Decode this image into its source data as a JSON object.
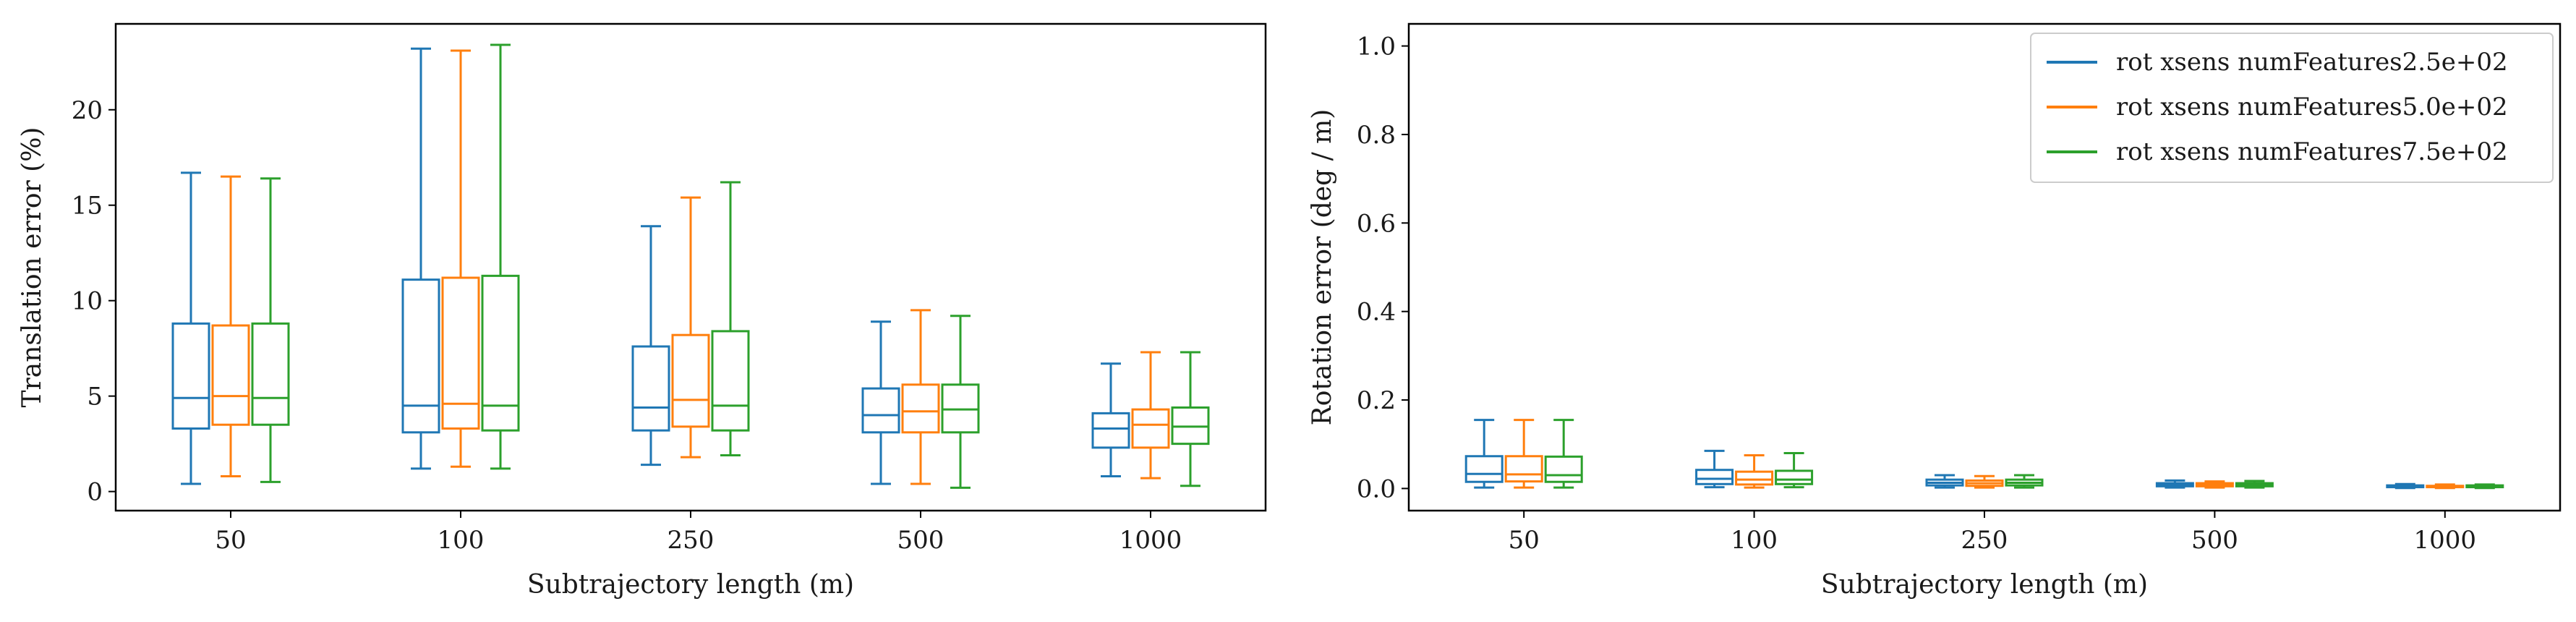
{
  "chart_data": [
    {
      "type": "box",
      "xlabel": "Subtrajectory length (m)",
      "ylabel": "Translation error (%)",
      "categories": [
        "50",
        "100",
        "250",
        "500",
        "1000"
      ],
      "yticks": [
        0,
        5,
        10,
        15,
        20
      ],
      "ylim": [
        -1.0,
        24.5
      ],
      "grid": false,
      "series": [
        {
          "name": "rot xsens numFeatures2.5e+02",
          "color": "#1f77b4",
          "boxes": [
            {
              "whislo": 0.4,
              "q1": 3.3,
              "med": 4.9,
              "q3": 8.8,
              "whishi": 16.7
            },
            {
              "whislo": 1.2,
              "q1": 3.1,
              "med": 4.5,
              "q3": 11.1,
              "whishi": 23.2
            },
            {
              "whislo": 1.4,
              "q1": 3.2,
              "med": 4.4,
              "q3": 7.6,
              "whishi": 13.9
            },
            {
              "whislo": 0.4,
              "q1": 3.1,
              "med": 4.0,
              "q3": 5.4,
              "whishi": 8.9
            },
            {
              "whislo": 0.8,
              "q1": 2.3,
              "med": 3.3,
              "q3": 4.1,
              "whishi": 6.7
            }
          ]
        },
        {
          "name": "rot xsens numFeatures5.0e+02",
          "color": "#ff7f0e",
          "boxes": [
            {
              "whislo": 0.8,
              "q1": 3.5,
              "med": 5.0,
              "q3": 8.7,
              "whishi": 16.5
            },
            {
              "whislo": 1.3,
              "q1": 3.3,
              "med": 4.6,
              "q3": 11.2,
              "whishi": 23.1
            },
            {
              "whislo": 1.8,
              "q1": 3.4,
              "med": 4.8,
              "q3": 8.2,
              "whishi": 15.4
            },
            {
              "whislo": 0.4,
              "q1": 3.1,
              "med": 4.2,
              "q3": 5.6,
              "whishi": 9.5
            },
            {
              "whislo": 0.7,
              "q1": 2.3,
              "med": 3.5,
              "q3": 4.3,
              "whishi": 7.3
            }
          ]
        },
        {
          "name": "rot xsens numFeatures7.5e+02",
          "color": "#2ca02c",
          "boxes": [
            {
              "whislo": 0.5,
              "q1": 3.5,
              "med": 4.9,
              "q3": 8.8,
              "whishi": 16.4
            },
            {
              "whislo": 1.2,
              "q1": 3.2,
              "med": 4.5,
              "q3": 11.3,
              "whishi": 23.4
            },
            {
              "whislo": 1.9,
              "q1": 3.2,
              "med": 4.5,
              "q3": 8.4,
              "whishi": 16.2
            },
            {
              "whislo": 0.2,
              "q1": 3.1,
              "med": 4.3,
              "q3": 5.6,
              "whishi": 9.2
            },
            {
              "whislo": 0.3,
              "q1": 2.5,
              "med": 3.4,
              "q3": 4.4,
              "whishi": 7.3
            }
          ]
        }
      ]
    },
    {
      "type": "box",
      "xlabel": "Subtrajectory length (m)",
      "ylabel": "Rotation error (deg / m)",
      "categories": [
        "50",
        "100",
        "250",
        "500",
        "1000"
      ],
      "yticks": [
        "0.0",
        "0.2",
        "0.4",
        "0.6",
        "0.8",
        "1.0"
      ],
      "ylim": [
        -0.05,
        1.05
      ],
      "grid": false,
      "legend_position": "top-right",
      "series": [
        {
          "name": "rot xsens numFeatures2.5e+02",
          "color": "#1f77b4",
          "boxes": [
            {
              "whislo": 0.002,
              "q1": 0.015,
              "med": 0.033,
              "q3": 0.073,
              "whishi": 0.155
            },
            {
              "whislo": 0.003,
              "q1": 0.01,
              "med": 0.022,
              "q3": 0.042,
              "whishi": 0.085
            },
            {
              "whislo": 0.002,
              "q1": 0.007,
              "med": 0.013,
              "q3": 0.02,
              "whishi": 0.03
            },
            {
              "whislo": 0.002,
              "q1": 0.005,
              "med": 0.008,
              "q3": 0.012,
              "whishi": 0.018
            },
            {
              "whislo": 0.001,
              "q1": 0.003,
              "med": 0.005,
              "q3": 0.007,
              "whishi": 0.01
            }
          ]
        },
        {
          "name": "rot xsens numFeatures5.0e+02",
          "color": "#ff7f0e",
          "boxes": [
            {
              "whislo": 0.002,
              "q1": 0.016,
              "med": 0.032,
              "q3": 0.073,
              "whishi": 0.155
            },
            {
              "whislo": 0.002,
              "q1": 0.009,
              "med": 0.02,
              "q3": 0.038,
              "whishi": 0.075
            },
            {
              "whislo": 0.002,
              "q1": 0.006,
              "med": 0.012,
              "q3": 0.018,
              "whishi": 0.028
            },
            {
              "whislo": 0.002,
              "q1": 0.005,
              "med": 0.008,
              "q3": 0.012,
              "whishi": 0.016
            },
            {
              "whislo": 0.001,
              "q1": 0.003,
              "med": 0.005,
              "q3": 0.006,
              "whishi": 0.009
            }
          ]
        },
        {
          "name": "rot xsens numFeatures7.5e+02",
          "color": "#2ca02c",
          "boxes": [
            {
              "whislo": 0.002,
              "q1": 0.015,
              "med": 0.03,
              "q3": 0.072,
              "whishi": 0.155
            },
            {
              "whislo": 0.003,
              "q1": 0.01,
              "med": 0.02,
              "q3": 0.04,
              "whishi": 0.08
            },
            {
              "whislo": 0.002,
              "q1": 0.007,
              "med": 0.013,
              "q3": 0.02,
              "whishi": 0.03
            },
            {
              "whislo": 0.002,
              "q1": 0.005,
              "med": 0.008,
              "q3": 0.012,
              "whishi": 0.017
            },
            {
              "whislo": 0.001,
              "q1": 0.003,
              "med": 0.005,
              "q3": 0.007,
              "whishi": 0.009
            }
          ]
        }
      ]
    }
  ]
}
